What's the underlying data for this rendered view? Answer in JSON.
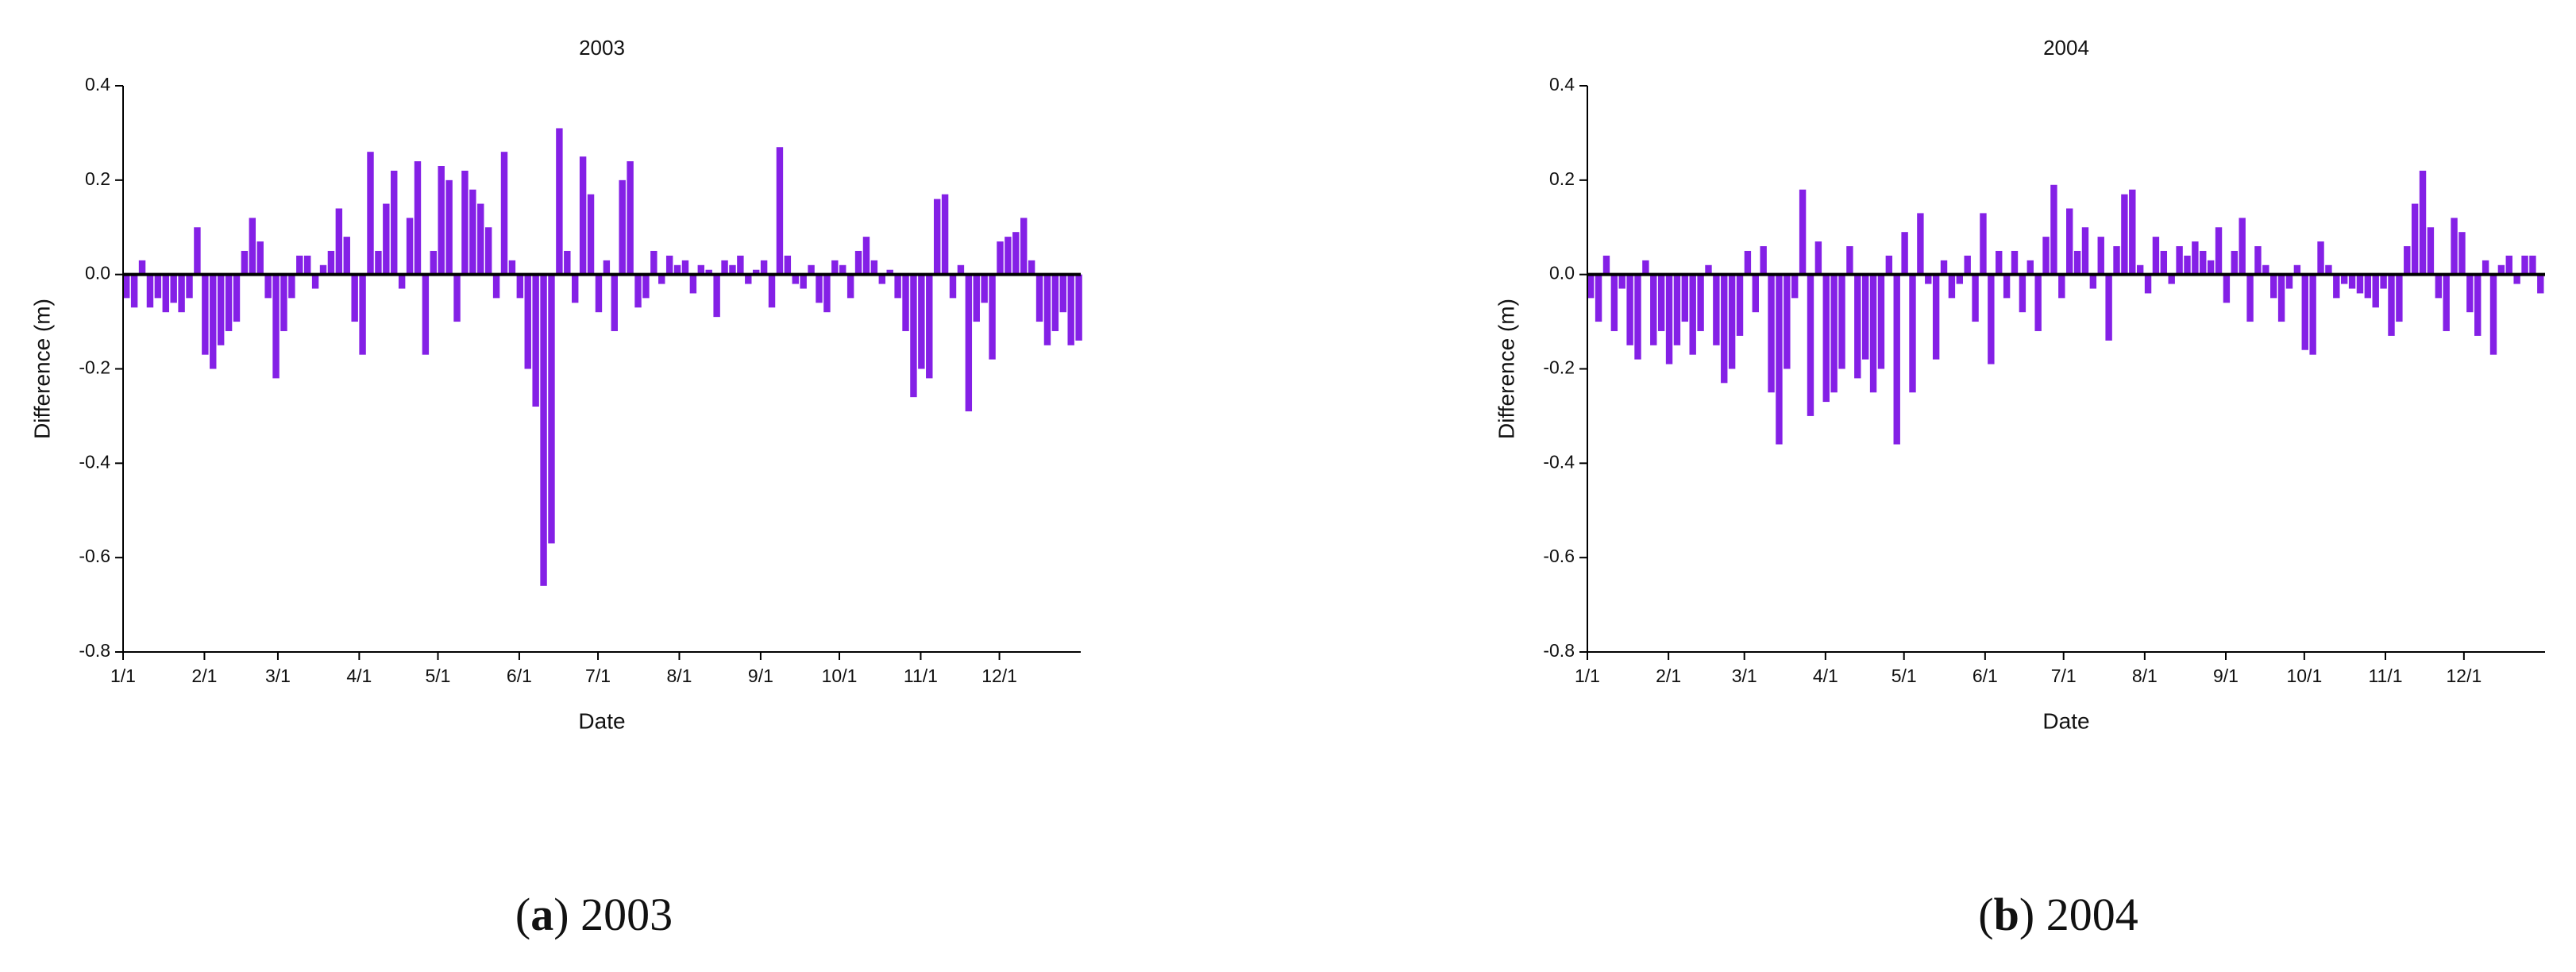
{
  "chart_data": [
    {
      "type": "bar",
      "title": "2003",
      "xlabel": "Date",
      "ylabel": "Difference (m)",
      "color": "#8420e6",
      "xlim": [
        0,
        365
      ],
      "ylim": [
        -0.8,
        0.4
      ],
      "xticks": [
        {
          "value": 0,
          "label": "1/1"
        },
        {
          "value": 31,
          "label": "2/1"
        },
        {
          "value": 59,
          "label": "3/1"
        },
        {
          "value": 90,
          "label": "4/1"
        },
        {
          "value": 120,
          "label": "5/1"
        },
        {
          "value": 151,
          "label": "6/1"
        },
        {
          "value": 181,
          "label": "7/1"
        },
        {
          "value": 212,
          "label": "8/1"
        },
        {
          "value": 243,
          "label": "9/1"
        },
        {
          "value": 273,
          "label": "10/1"
        },
        {
          "value": 304,
          "label": "11/1"
        },
        {
          "value": 334,
          "label": "12/1"
        }
      ],
      "yticks": [
        -0.8,
        -0.6,
        -0.4,
        -0.2,
        {
          "value": 0,
          "label": "0.0"
        },
        0.2,
        0.4
      ],
      "x": [
        0,
        3,
        6,
        9,
        12,
        15,
        18,
        21,
        24,
        27,
        30,
        33,
        36,
        39,
        42,
        45,
        48,
        51,
        54,
        57,
        60,
        63,
        66,
        69,
        72,
        75,
        78,
        81,
        84,
        87,
        90,
        93,
        96,
        99,
        102,
        105,
        108,
        111,
        114,
        117,
        120,
        123,
        126,
        129,
        132,
        135,
        138,
        141,
        144,
        147,
        150,
        153,
        156,
        159,
        162,
        165,
        168,
        171,
        174,
        177,
        180,
        183,
        186,
        189,
        192,
        195,
        198,
        201,
        204,
        207,
        210,
        213,
        216,
        219,
        222,
        225,
        228,
        231,
        234,
        237,
        240,
        243,
        246,
        249,
        252,
        255,
        258,
        261,
        264,
        267,
        270,
        273,
        276,
        279,
        282,
        285,
        288,
        291,
        294,
        297,
        300,
        303,
        306,
        309,
        312,
        315,
        318,
        321,
        324,
        327,
        330,
        333,
        336,
        339,
        342,
        345,
        348,
        351,
        354,
        357,
        360,
        363
      ],
      "values": [
        -0.05,
        -0.07,
        0.03,
        -0.07,
        -0.05,
        -0.08,
        -0.06,
        -0.08,
        -0.05,
        0.1,
        -0.17,
        -0.2,
        -0.15,
        -0.12,
        -0.1,
        0.05,
        0.12,
        0.07,
        -0.05,
        -0.22,
        -0.12,
        -0.05,
        0.04,
        0.04,
        -0.03,
        0.02,
        0.05,
        0.14,
        0.08,
        -0.1,
        -0.17,
        0.26,
        0.05,
        0.15,
        0.22,
        -0.03,
        0.12,
        0.24,
        -0.17,
        0.05,
        0.23,
        0.2,
        -0.1,
        0.22,
        0.18,
        0.15,
        0.1,
        -0.05,
        0.26,
        0.03,
        -0.05,
        -0.2,
        -0.28,
        -0.66,
        -0.57,
        0.31,
        0.05,
        -0.06,
        0.25,
        0.17,
        -0.08,
        0.03,
        -0.12,
        0.2,
        0.24,
        -0.07,
        -0.05,
        0.05,
        -0.02,
        0.04,
        0.02,
        0.03,
        -0.04,
        0.02,
        0.01,
        -0.09,
        0.03,
        0.02,
        0.04,
        -0.02,
        0.01,
        0.03,
        -0.07,
        0.27,
        0.04,
        -0.02,
        -0.03,
        0.02,
        -0.06,
        -0.08,
        0.03,
        0.02,
        -0.05,
        0.05,
        0.08,
        0.03,
        -0.02,
        0.01,
        -0.05,
        -0.12,
        -0.26,
        -0.2,
        -0.22,
        0.16,
        0.17,
        -0.05,
        0.02,
        -0.29,
        -0.1,
        -0.06,
        -0.18,
        0.07,
        0.08,
        0.09,
        0.12,
        0.03,
        -0.1,
        -0.15,
        -0.12,
        -0.08,
        -0.15,
        -0.14
      ],
      "caption": [
        "(",
        "a",
        ") 2003"
      ]
    },
    {
      "type": "bar",
      "title": "2004",
      "xlabel": "Date",
      "ylabel": "Difference (m)",
      "color": "#8420e6",
      "xlim": [
        0,
        366
      ],
      "ylim": [
        -0.8,
        0.4
      ],
      "xticks": [
        {
          "value": 0,
          "label": "1/1"
        },
        {
          "value": 31,
          "label": "2/1"
        },
        {
          "value": 60,
          "label": "3/1"
        },
        {
          "value": 91,
          "label": "4/1"
        },
        {
          "value": 121,
          "label": "5/1"
        },
        {
          "value": 152,
          "label": "6/1"
        },
        {
          "value": 182,
          "label": "7/1"
        },
        {
          "value": 213,
          "label": "8/1"
        },
        {
          "value": 244,
          "label": "9/1"
        },
        {
          "value": 274,
          "label": "10/1"
        },
        {
          "value": 305,
          "label": "11/1"
        },
        {
          "value": 335,
          "label": "12/1"
        }
      ],
      "yticks": [
        -0.8,
        -0.6,
        -0.4,
        -0.2,
        {
          "value": 0,
          "label": "0.0"
        },
        0.2,
        0.4
      ],
      "x": [
        0,
        3,
        6,
        9,
        12,
        15,
        18,
        21,
        24,
        27,
        30,
        33,
        36,
        39,
        42,
        45,
        48,
        51,
        54,
        57,
        60,
        63,
        66,
        69,
        72,
        75,
        78,
        81,
        84,
        87,
        90,
        93,
        96,
        99,
        102,
        105,
        108,
        111,
        114,
        117,
        120,
        123,
        126,
        129,
        132,
        135,
        138,
        141,
        144,
        147,
        150,
        153,
        156,
        159,
        162,
        165,
        168,
        171,
        174,
        177,
        180,
        183,
        186,
        189,
        192,
        195,
        198,
        201,
        204,
        207,
        210,
        213,
        216,
        219,
        222,
        225,
        228,
        231,
        234,
        237,
        240,
        243,
        246,
        249,
        252,
        255,
        258,
        261,
        264,
        267,
        270,
        273,
        276,
        279,
        282,
        285,
        288,
        291,
        294,
        297,
        300,
        303,
        306,
        309,
        312,
        315,
        318,
        321,
        324,
        327,
        330,
        333,
        336,
        339,
        342,
        345,
        348,
        351,
        354,
        357,
        360,
        363
      ],
      "values": [
        -0.05,
        -0.1,
        0.04,
        -0.12,
        -0.03,
        -0.15,
        -0.18,
        0.03,
        -0.15,
        -0.12,
        -0.19,
        -0.15,
        -0.1,
        -0.17,
        -0.12,
        0.02,
        -0.15,
        -0.23,
        -0.2,
        -0.13,
        0.05,
        -0.08,
        0.06,
        -0.25,
        -0.36,
        -0.2,
        -0.05,
        0.18,
        -0.3,
        0.07,
        -0.27,
        -0.25,
        -0.2,
        0.06,
        -0.22,
        -0.18,
        -0.25,
        -0.2,
        0.04,
        -0.36,
        0.09,
        -0.25,
        0.13,
        -0.02,
        -0.18,
        0.03,
        -0.05,
        -0.02,
        0.04,
        -0.1,
        0.13,
        -0.19,
        0.05,
        -0.05,
        0.05,
        -0.08,
        0.03,
        -0.12,
        0.08,
        0.19,
        -0.05,
        0.14,
        0.05,
        0.1,
        -0.03,
        0.08,
        -0.14,
        0.06,
        0.17,
        0.18,
        0.02,
        -0.04,
        0.08,
        0.05,
        -0.02,
        0.06,
        0.04,
        0.07,
        0.05,
        0.03,
        0.1,
        -0.06,
        0.05,
        0.12,
        -0.1,
        0.06,
        0.02,
        -0.05,
        -0.1,
        -0.03,
        0.02,
        -0.16,
        -0.17,
        0.07,
        0.02,
        -0.05,
        -0.02,
        -0.03,
        -0.04,
        -0.05,
        -0.07,
        -0.03,
        -0.13,
        -0.1,
        0.06,
        0.15,
        0.22,
        0.1,
        -0.05,
        -0.12,
        0.12,
        0.09,
        -0.08,
        -0.13,
        0.03,
        -0.17,
        0.02,
        0.04,
        -0.02,
        0.04,
        0.04,
        -0.04
      ],
      "caption": [
        "(",
        "b",
        ") 2004"
      ]
    }
  ]
}
